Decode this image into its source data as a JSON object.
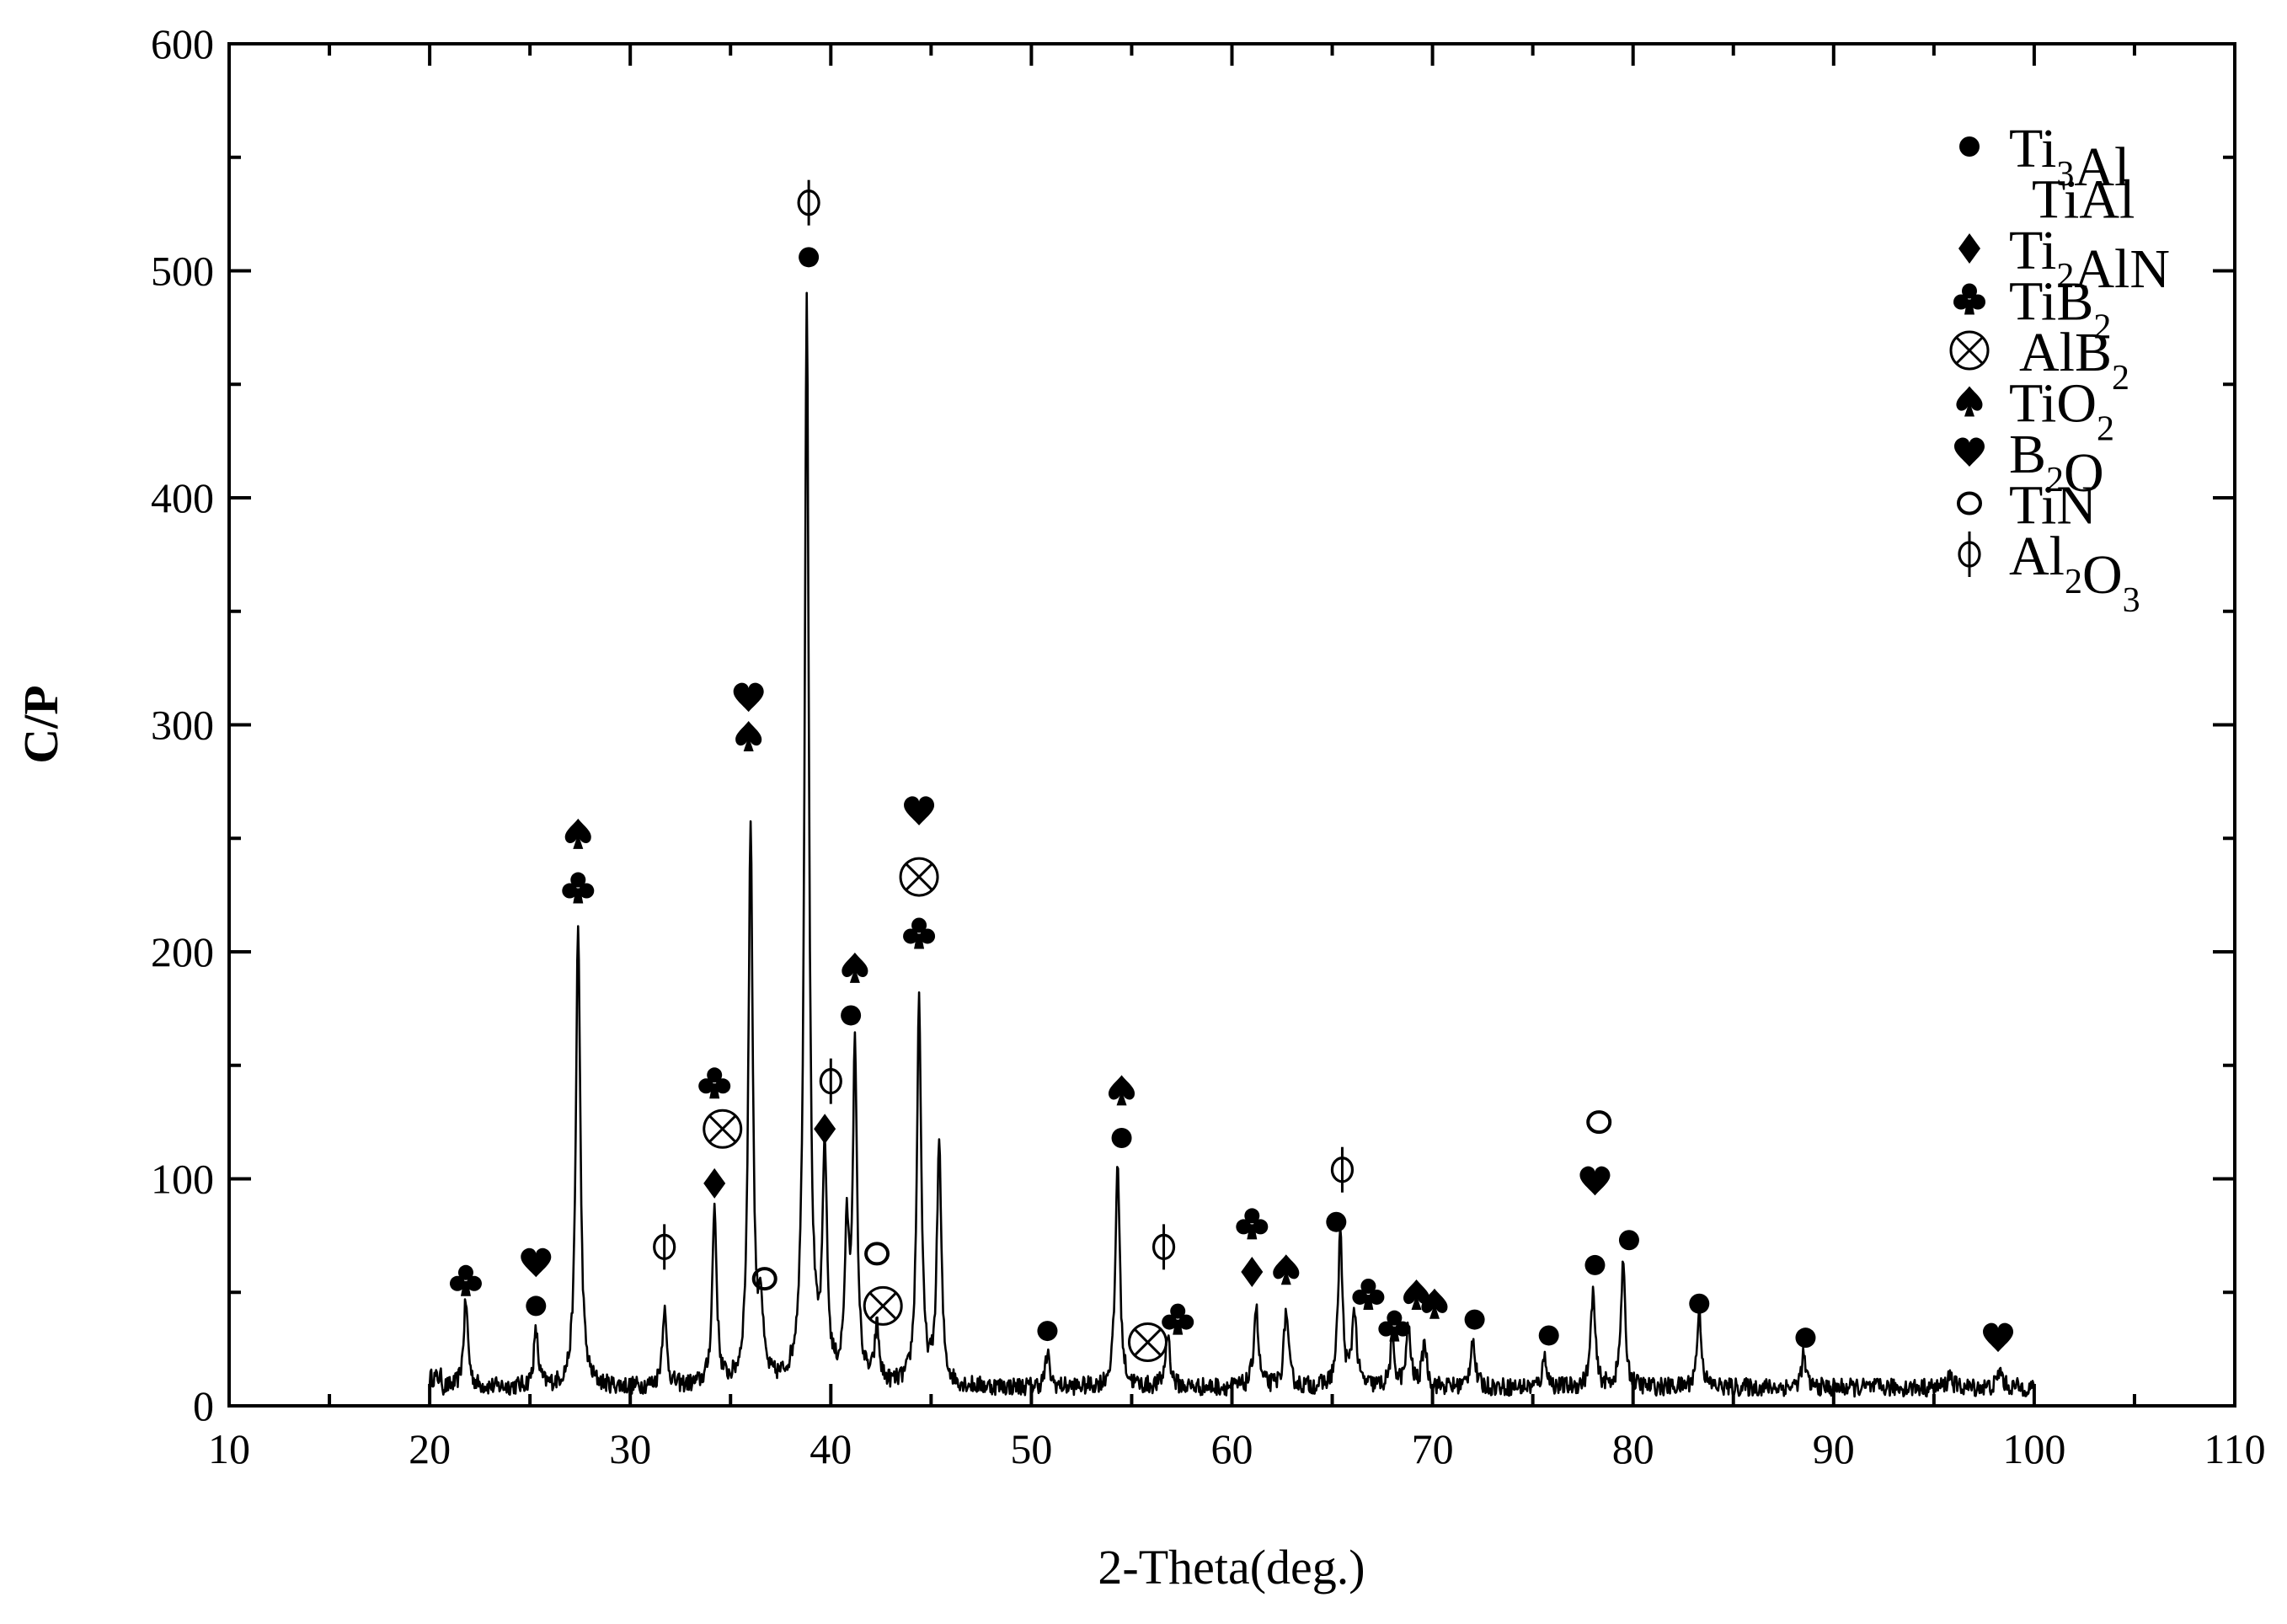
{
  "chart_data": {
    "type": "line",
    "title": "",
    "xlabel": "2-Theta(deg.)",
    "ylabel": "C/P",
    "xlim": [
      10,
      110
    ],
    "ylim": [
      0,
      600
    ],
    "x_ticks": [
      10,
      20,
      30,
      40,
      50,
      60,
      70,
      80,
      90,
      100,
      110
    ],
    "y_ticks": [
      0,
      100,
      200,
      300,
      400,
      500,
      600
    ],
    "grid": false,
    "legend_position": "top-right",
    "x_range": [
      20,
      100
    ],
    "baseline": 8,
    "noise": 4,
    "peaks": [
      {
        "x": 21.8,
        "y": 46
      },
      {
        "x": 25.3,
        "y": 32
      },
      {
        "x": 27.4,
        "y": 213
      },
      {
        "x": 31.7,
        "y": 42
      },
      {
        "x": 34.2,
        "y": 86
      },
      {
        "x": 36.0,
        "y": 255
      },
      {
        "x": 36.5,
        "y": 40
      },
      {
        "x": 38.8,
        "y": 488
      },
      {
        "x": 39.7,
        "y": 108
      },
      {
        "x": 40.8,
        "y": 70
      },
      {
        "x": 41.2,
        "y": 152
      },
      {
        "x": 42.3,
        "y": 32
      },
      {
        "x": 44.4,
        "y": 178
      },
      {
        "x": 45.4,
        "y": 114
      },
      {
        "x": 50.8,
        "y": 22
      },
      {
        "x": 54.3,
        "y": 108
      },
      {
        "x": 56.8,
        "y": 32
      },
      {
        "x": 61.2,
        "y": 44
      },
      {
        "x": 62.7,
        "y": 42
      },
      {
        "x": 65.4,
        "y": 76
      },
      {
        "x": 66.1,
        "y": 42
      },
      {
        "x": 68.0,
        "y": 28
      },
      {
        "x": 68.8,
        "y": 34
      },
      {
        "x": 69.6,
        "y": 28
      },
      {
        "x": 72.0,
        "y": 30
      },
      {
        "x": 75.6,
        "y": 22
      },
      {
        "x": 78.0,
        "y": 50
      },
      {
        "x": 79.5,
        "y": 62
      },
      {
        "x": 83.3,
        "y": 42
      },
      {
        "x": 88.5,
        "y": 22
      },
      {
        "x": 95.8,
        "y": 14
      },
      {
        "x": 98.3,
        "y": 16
      }
    ],
    "markers": [
      {
        "x": 21.8,
        "y": 55,
        "symbol": "club"
      },
      {
        "x": 25.3,
        "y": 44,
        "symbol": "circle"
      },
      {
        "x": 25.3,
        "y": 63,
        "symbol": "heart"
      },
      {
        "x": 27.4,
        "y": 228,
        "symbol": "club"
      },
      {
        "x": 27.4,
        "y": 252,
        "symbol": "spade"
      },
      {
        "x": 31.7,
        "y": 70,
        "symbol": "phi"
      },
      {
        "x": 34.2,
        "y": 98,
        "symbol": "diamond"
      },
      {
        "x": 34.6,
        "y": 122,
        "symbol": "otimes"
      },
      {
        "x": 34.2,
        "y": 142,
        "symbol": "club"
      },
      {
        "x": 35.9,
        "y": 295,
        "symbol": "spade"
      },
      {
        "x": 35.9,
        "y": 312,
        "symbol": "heart"
      },
      {
        "x": 36.7,
        "y": 56,
        "symbol": "o"
      },
      {
        "x": 38.9,
        "y": 506,
        "symbol": "circle"
      },
      {
        "x": 38.9,
        "y": 530,
        "symbol": "phi"
      },
      {
        "x": 39.7,
        "y": 122,
        "symbol": "diamond"
      },
      {
        "x": 40.0,
        "y": 143,
        "symbol": "phi"
      },
      {
        "x": 41.0,
        "y": 172,
        "symbol": "circle"
      },
      {
        "x": 41.2,
        "y": 193,
        "symbol": "spade"
      },
      {
        "x": 42.3,
        "y": 67,
        "symbol": "o"
      },
      {
        "x": 42.6,
        "y": 44,
        "symbol": "otimes"
      },
      {
        "x": 44.4,
        "y": 208,
        "symbol": "club"
      },
      {
        "x": 44.4,
        "y": 233,
        "symbol": "otimes"
      },
      {
        "x": 44.4,
        "y": 262,
        "symbol": "heart"
      },
      {
        "x": 50.8,
        "y": 33,
        "symbol": "circle"
      },
      {
        "x": 54.5,
        "y": 118,
        "symbol": "circle"
      },
      {
        "x": 54.5,
        "y": 139,
        "symbol": "spade"
      },
      {
        "x": 55.8,
        "y": 28,
        "symbol": "otimes"
      },
      {
        "x": 56.6,
        "y": 70,
        "symbol": "phi"
      },
      {
        "x": 57.3,
        "y": 38,
        "symbol": "club"
      },
      {
        "x": 61.0,
        "y": 59,
        "symbol": "diamond"
      },
      {
        "x": 61.0,
        "y": 80,
        "symbol": "club"
      },
      {
        "x": 62.7,
        "y": 60,
        "symbol": "spade"
      },
      {
        "x": 65.2,
        "y": 81,
        "symbol": "circle"
      },
      {
        "x": 65.5,
        "y": 104,
        "symbol": "phi"
      },
      {
        "x": 66.8,
        "y": 49,
        "symbol": "club"
      },
      {
        "x": 68.1,
        "y": 35,
        "symbol": "club"
      },
      {
        "x": 69.2,
        "y": 49,
        "symbol": "spade"
      },
      {
        "x": 70.1,
        "y": 45,
        "symbol": "spade"
      },
      {
        "x": 72.1,
        "y": 38,
        "symbol": "circle"
      },
      {
        "x": 75.8,
        "y": 31,
        "symbol": "circle"
      },
      {
        "x": 78.1,
        "y": 62,
        "symbol": "circle"
      },
      {
        "x": 78.1,
        "y": 99,
        "symbol": "heart"
      },
      {
        "x": 78.3,
        "y": 125,
        "symbol": "o"
      },
      {
        "x": 79.8,
        "y": 73,
        "symbol": "circle"
      },
      {
        "x": 83.3,
        "y": 45,
        "symbol": "circle"
      },
      {
        "x": 88.6,
        "y": 30,
        "symbol": "circle"
      },
      {
        "x": 98.2,
        "y": 30,
        "symbol": "heart"
      }
    ],
    "legend": [
      {
        "symbol": "circle",
        "label": "Ti",
        "sub1": "3",
        "label2": "Al",
        "sub2": ""
      },
      {
        "symbol": "none",
        "label": "TiAl",
        "sub1": "",
        "label2": "",
        "sub2": ""
      },
      {
        "symbol": "diamond",
        "label": "Ti",
        "sub1": "2",
        "label2": "AlN",
        "sub2": ""
      },
      {
        "symbol": "club",
        "label": "TiB",
        "sub1": "2",
        "label2": "",
        "sub2": ""
      },
      {
        "symbol": "otimes",
        "label": "AlB",
        "sub1": "2",
        "label2": "",
        "sub2": ""
      },
      {
        "symbol": "spade",
        "label": "TiO",
        "sub1": "2",
        "label2": "",
        "sub2": ""
      },
      {
        "symbol": "heart",
        "label": "B",
        "sub1": "2",
        "label2": "O",
        "sub2": ""
      },
      {
        "symbol": "o",
        "label": "TiN",
        "sub1": "",
        "label2": "",
        "sub2": ""
      },
      {
        "symbol": "phi",
        "label": "Al",
        "sub1": "2",
        "label2": "O",
        "sub2": "3"
      }
    ]
  }
}
